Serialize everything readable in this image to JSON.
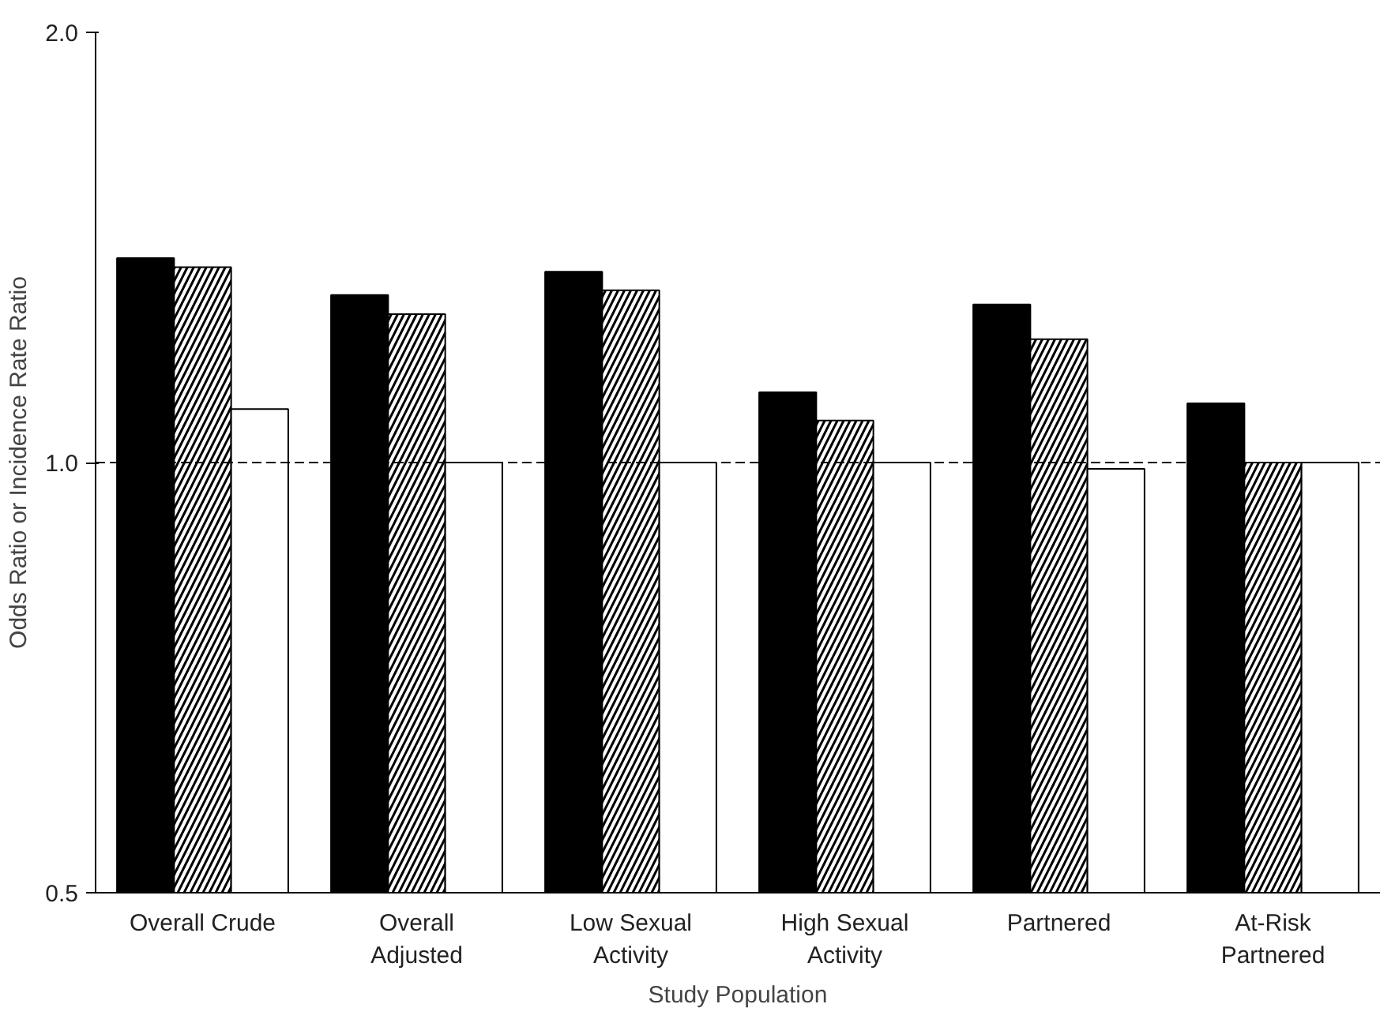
{
  "chart_data": {
    "type": "bar",
    "xlabel": "Study Population",
    "ylabel": "Odds Ratio or Incidence Rate Ratio",
    "categories": [
      "Overall Crude",
      "Overall\nAdjusted",
      "Low Sexual\nActivity",
      "High Sexual\nActivity",
      "Partnered",
      "At-Risk\nPartnered"
    ],
    "series": [
      {
        "color": "#000000",
        "values": [
          1.39,
          1.31,
          1.36,
          1.12,
          1.29,
          1.1
        ]
      },
      {
        "color": "#ffffff",
        "values": [
          1.37,
          1.27,
          1.32,
          1.07,
          1.22,
          1.0
        ]
      },
      {
        "color": "#ffffff",
        "values": [
          1.09,
          1.0,
          1.0,
          1.0,
          0.99,
          1.0
        ]
      }
    ],
    "log": "y",
    "ylim": [
      0.5,
      2.0
    ],
    "yticks": [
      {
        "value": 0.5,
        "label": "0.5"
      },
      {
        "value": 1.0,
        "label": "1.0"
      },
      {
        "value": 2.0,
        "label": "2.0"
      }
    ],
    "ref_lines": [
      {
        "axis": "y",
        "value": 1.0,
        "line_style": "dashed",
        "color": "#000000"
      }
    ],
    "grid": false
  }
}
